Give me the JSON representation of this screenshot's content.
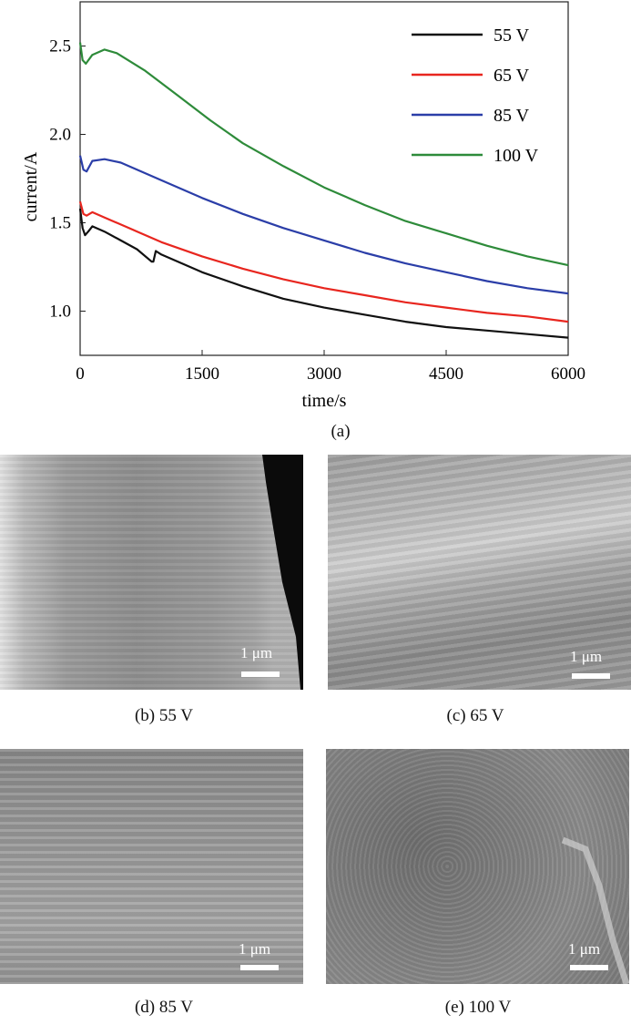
{
  "chart_data": {
    "type": "line",
    "xlabel": "time/s",
    "ylabel": "current/A",
    "xlim": [
      0,
      6000
    ],
    "ylim": [
      0.75,
      2.75
    ],
    "x_ticks": [
      "0",
      "1500",
      "3000",
      "4500",
      "6000"
    ],
    "y_ticks": [
      "1.0",
      "1.5",
      "2.0",
      "2.5"
    ],
    "legend_position": "top-right",
    "series": [
      {
        "name": "55 V",
        "color": "#111111",
        "points": [
          [
            0,
            1.58
          ],
          [
            30,
            1.47
          ],
          [
            60,
            1.43
          ],
          [
            100,
            1.45
          ],
          [
            150,
            1.48
          ],
          [
            300,
            1.45
          ],
          [
            500,
            1.4
          ],
          [
            700,
            1.35
          ],
          [
            880,
            1.28
          ],
          [
            900,
            1.28
          ],
          [
            930,
            1.34
          ],
          [
            1000,
            1.32
          ],
          [
            1500,
            1.22
          ],
          [
            2000,
            1.14
          ],
          [
            2500,
            1.07
          ],
          [
            3000,
            1.02
          ],
          [
            3500,
            0.98
          ],
          [
            4000,
            0.94
          ],
          [
            4500,
            0.91
          ],
          [
            5000,
            0.89
          ],
          [
            5500,
            0.87
          ],
          [
            6000,
            0.85
          ]
        ]
      },
      {
        "name": "65 V",
        "color": "#e8261f",
        "points": [
          [
            0,
            1.62
          ],
          [
            40,
            1.55
          ],
          [
            80,
            1.54
          ],
          [
            150,
            1.56
          ],
          [
            300,
            1.53
          ],
          [
            600,
            1.47
          ],
          [
            1000,
            1.39
          ],
          [
            1500,
            1.31
          ],
          [
            2000,
            1.24
          ],
          [
            2500,
            1.18
          ],
          [
            3000,
            1.13
          ],
          [
            3500,
            1.09
          ],
          [
            4000,
            1.05
          ],
          [
            4500,
            1.02
          ],
          [
            5000,
            0.99
          ],
          [
            5500,
            0.97
          ],
          [
            6000,
            0.94
          ]
        ]
      },
      {
        "name": "85 V",
        "color": "#2b3ea8",
        "points": [
          [
            0,
            1.88
          ],
          [
            40,
            1.8
          ],
          [
            80,
            1.79
          ],
          [
            150,
            1.85
          ],
          [
            300,
            1.86
          ],
          [
            500,
            1.84
          ],
          [
            1000,
            1.74
          ],
          [
            1500,
            1.64
          ],
          [
            2000,
            1.55
          ],
          [
            2500,
            1.47
          ],
          [
            3000,
            1.4
          ],
          [
            3500,
            1.33
          ],
          [
            4000,
            1.27
          ],
          [
            4500,
            1.22
          ],
          [
            5000,
            1.17
          ],
          [
            5500,
            1.13
          ],
          [
            6000,
            1.1
          ]
        ]
      },
      {
        "name": "100 V",
        "color": "#2e8b3a",
        "points": [
          [
            0,
            2.52
          ],
          [
            30,
            2.42
          ],
          [
            70,
            2.4
          ],
          [
            150,
            2.45
          ],
          [
            300,
            2.48
          ],
          [
            450,
            2.46
          ],
          [
            800,
            2.36
          ],
          [
            1200,
            2.22
          ],
          [
            1600,
            2.08
          ],
          [
            2000,
            1.95
          ],
          [
            2500,
            1.82
          ],
          [
            3000,
            1.7
          ],
          [
            3500,
            1.6
          ],
          [
            4000,
            1.51
          ],
          [
            4500,
            1.44
          ],
          [
            5000,
            1.37
          ],
          [
            5500,
            1.31
          ],
          [
            6000,
            1.26
          ]
        ]
      }
    ]
  },
  "captions": {
    "a": "(a)",
    "b": "(b) 55 V",
    "c": "(c) 65 V",
    "d": "(d) 85 V",
    "e": "(e) 100 V"
  },
  "scale_bar_label": "1 μm"
}
